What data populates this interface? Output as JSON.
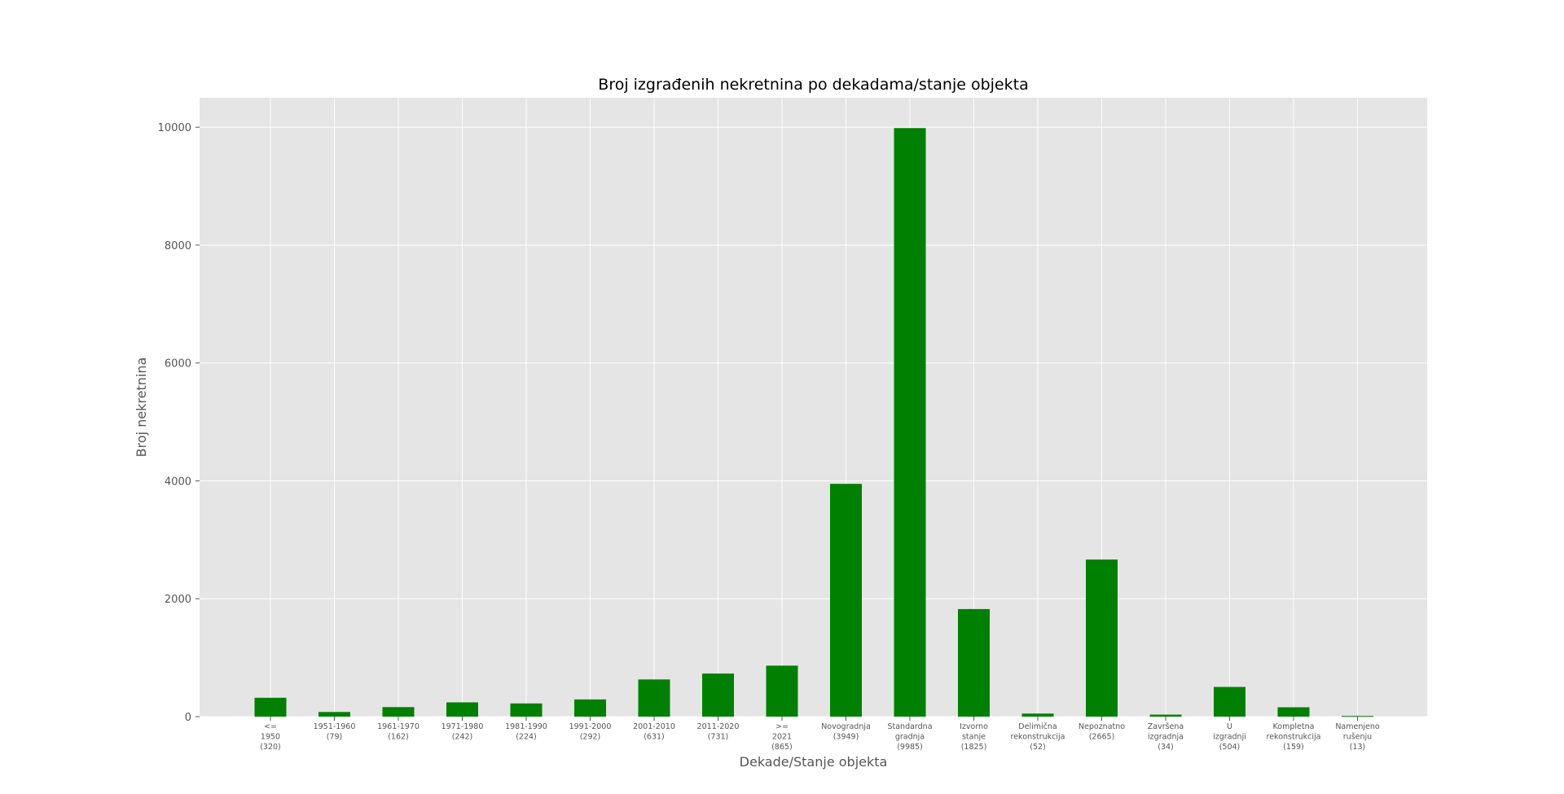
{
  "chart_data": {
    "type": "bar",
    "title": "Broj izgrađenih nekretnina po dekadama/stanje objekta",
    "xlabel": "Dekade/Stanje objekta",
    "ylabel": "Broj nekretnina",
    "ylim": [
      0,
      10500
    ],
    "yticks": [
      0,
      2000,
      4000,
      6000,
      8000,
      10000
    ],
    "grid": true,
    "legend": "none",
    "bar_color": "#008000",
    "background_color": "#e5e5e5",
    "grid_color": "#ffffff",
    "categories": [
      [
        "<=",
        "1950",
        "(320)"
      ],
      [
        "1951-1960",
        "(79)"
      ],
      [
        "1961-1970",
        "(162)"
      ],
      [
        "1971-1980",
        "(242)"
      ],
      [
        "1981-1990",
        "(224)"
      ],
      [
        "1991-2000",
        "(292)"
      ],
      [
        "2001-2010",
        "(631)"
      ],
      [
        "2011-2020",
        "(731)"
      ],
      [
        ">=",
        "2021",
        "(865)"
      ],
      [
        "Novogradnja",
        "(3949)"
      ],
      [
        "Standardna",
        "gradnja",
        "(9985)"
      ],
      [
        "Izvorno",
        "stanje",
        "(1825)"
      ],
      [
        "Delimična",
        "rekonstrukcija",
        "(52)"
      ],
      [
        "Nepoznatno",
        "(2665)"
      ],
      [
        "Završena",
        "izgradnja",
        "(34)"
      ],
      [
        "U",
        "izgradnji",
        "(504)"
      ],
      [
        "Kompletna",
        "rekonstrukcija",
        "(159)"
      ],
      [
        "Namenjeno",
        "rušenju",
        "(13)"
      ]
    ],
    "values": [
      320,
      79,
      162,
      242,
      224,
      292,
      631,
      731,
      865,
      3949,
      9985,
      1825,
      52,
      2665,
      34,
      504,
      159,
      13
    ]
  }
}
